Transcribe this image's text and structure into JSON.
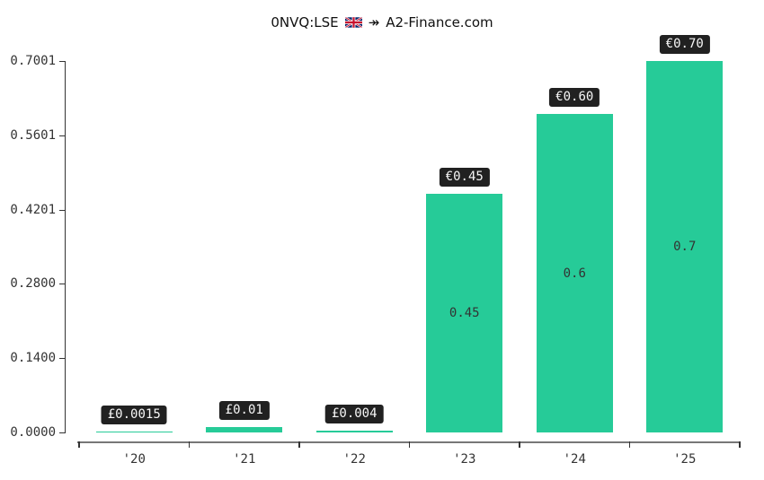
{
  "title": {
    "symbol": "0NVQ:LSE",
    "flag": "uk-flag",
    "arrow": "↠",
    "site": "A2-Finance.com"
  },
  "colors": {
    "bar": "#26cb98",
    "badge_bg": "#212121",
    "badge_text": "#f7f7f7",
    "axis_text": "#333333",
    "inside_label": "#333333",
    "y_axis": "#333333",
    "x_axis": "#777777",
    "x_tick": "#333333"
  },
  "chart_data": {
    "type": "bar",
    "title": "0NVQ:LSE 🇬🇧 ↠ A2-Finance.com",
    "categories": [
      "'20",
      "'21",
      "'22",
      "'23",
      "'24",
      "'25"
    ],
    "values": [
      0.0015,
      0.01,
      0.004,
      0.45,
      0.6,
      0.7
    ],
    "bar_labels": [
      "£0.0015",
      "£0.01",
      "£0.004",
      "€0.45",
      "€0.60",
      "€0.70"
    ],
    "inside_labels": [
      "",
      "",
      "",
      "0.45",
      "0.6",
      "0.7"
    ],
    "yticks": [
      0.0,
      0.14,
      0.28,
      0.4201,
      0.5601,
      0.7001
    ],
    "ytick_labels": [
      "0.0000",
      "0.1400",
      "0.2800",
      "0.4201",
      "0.5601",
      "0.7001"
    ],
    "ylim": [
      0,
      0.7001
    ],
    "xlabel": "",
    "ylabel": "",
    "grid": false,
    "legend": null
  }
}
